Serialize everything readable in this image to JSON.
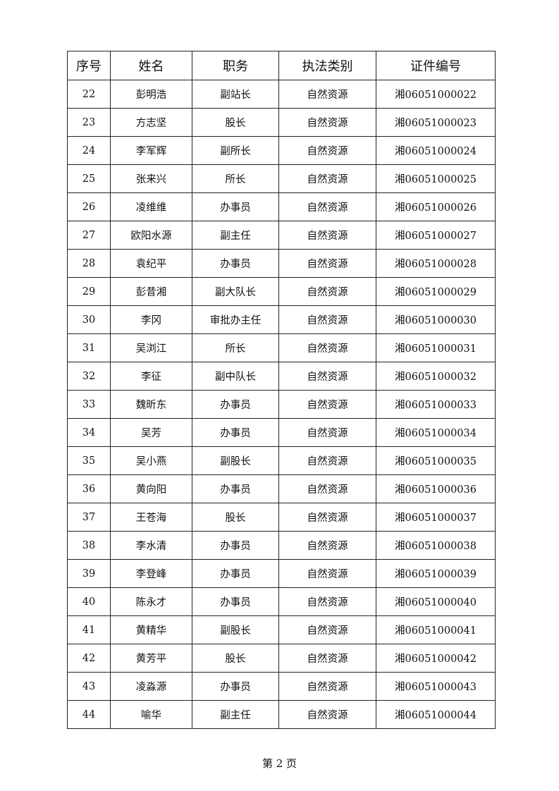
{
  "table": {
    "headers": [
      "序号",
      "姓名",
      "职务",
      "执法类别",
      "证件编号"
    ],
    "rows": [
      [
        "22",
        "彭明浩",
        "副站长",
        "自然资源",
        "湘06051000022"
      ],
      [
        "23",
        "方志坚",
        "股长",
        "自然资源",
        "湘06051000023"
      ],
      [
        "24",
        "李军辉",
        "副所长",
        "自然资源",
        "湘06051000024"
      ],
      [
        "25",
        "张来兴",
        "所长",
        "自然资源",
        "湘06051000025"
      ],
      [
        "26",
        "凌维维",
        "办事员",
        "自然资源",
        "湘06051000026"
      ],
      [
        "27",
        "欧阳水源",
        "副主任",
        "自然资源",
        "湘06051000027"
      ],
      [
        "28",
        "袁纪平",
        "办事员",
        "自然资源",
        "湘06051000028"
      ],
      [
        "29",
        "彭昔湘",
        "副大队长",
        "自然资源",
        "湘06051000029"
      ],
      [
        "30",
        "李冈",
        "审批办主任",
        "自然资源",
        "湘06051000030"
      ],
      [
        "31",
        "吴浏江",
        "所长",
        "自然资源",
        "湘06051000031"
      ],
      [
        "32",
        "李征",
        "副中队长",
        "自然资源",
        "湘06051000032"
      ],
      [
        "33",
        "魏昕东",
        "办事员",
        "自然资源",
        "湘06051000033"
      ],
      [
        "34",
        "吴芳",
        "办事员",
        "自然资源",
        "湘06051000034"
      ],
      [
        "35",
        "吴小燕",
        "副股长",
        "自然资源",
        "湘06051000035"
      ],
      [
        "36",
        "黄向阳",
        "办事员",
        "自然资源",
        "湘06051000036"
      ],
      [
        "37",
        "王苍海",
        "股长",
        "自然资源",
        "湘06051000037"
      ],
      [
        "38",
        "李水清",
        "办事员",
        "自然资源",
        "湘06051000038"
      ],
      [
        "39",
        "李登峰",
        "办事员",
        "自然资源",
        "湘06051000039"
      ],
      [
        "40",
        "陈永才",
        "办事员",
        "自然资源",
        "湘06051000040"
      ],
      [
        "41",
        "黄精华",
        "副股长",
        "自然资源",
        "湘06051000041"
      ],
      [
        "42",
        "黄芳平",
        "股长",
        "自然资源",
        "湘06051000042"
      ],
      [
        "43",
        "凌淼源",
        "办事员",
        "自然资源",
        "湘06051000043"
      ],
      [
        "44",
        "喻华",
        "副主任",
        "自然资源",
        "湘06051000044"
      ]
    ]
  },
  "footer": {
    "page_label": "第 2 页"
  }
}
